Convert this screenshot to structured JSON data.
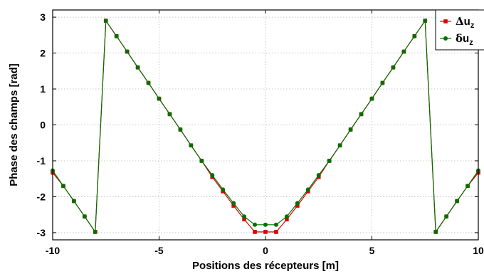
{
  "chart_data": {
    "type": "line",
    "xlabel": "Positions des récepteurs [m]",
    "ylabel": "Phase des champs [rad]",
    "xlim": [
      -10,
      10
    ],
    "ylim": [
      -3.2,
      3.2
    ],
    "xticks": [
      "-10",
      "-5",
      "0",
      "5",
      "10"
    ],
    "yticks": [
      "-3",
      "-2",
      "-1",
      "0",
      "1",
      "2",
      "3"
    ],
    "grid": true,
    "legend_position": "top-right",
    "x": [
      -10,
      -9.5,
      -9,
      -8.5,
      -8,
      -7.5,
      -7,
      -6.5,
      -6,
      -5.5,
      -5,
      -4.5,
      -4,
      -3.5,
      -3,
      -2.5,
      -2,
      -1.5,
      -1,
      -0.5,
      0,
      0.5,
      1,
      1.5,
      2,
      2.5,
      3,
      3.5,
      4,
      4.5,
      5,
      5.5,
      6,
      6.5,
      7,
      7.5,
      8,
      8.5,
      9,
      9.5,
      10
    ],
    "series": [
      {
        "name": "Δu_z",
        "color": "#e00000",
        "marker": "square",
        "values": [
          -1.33,
          -1.7,
          -2.12,
          -2.55,
          -2.98,
          2.9,
          2.47,
          2.04,
          1.6,
          1.17,
          0.73,
          0.3,
          -0.13,
          -0.57,
          -1.0,
          -1.45,
          -1.85,
          -2.25,
          -2.63,
          -2.98,
          -2.98,
          -2.98,
          -2.63,
          -2.25,
          -1.85,
          -1.45,
          -1.0,
          -0.57,
          -0.13,
          0.3,
          0.73,
          1.17,
          1.6,
          2.04,
          2.47,
          2.9,
          -2.98,
          -2.55,
          -2.12,
          -1.7,
          -1.33
        ]
      },
      {
        "name": "δu_z",
        "color": "#007000",
        "marker": "circle",
        "values": [
          -1.27,
          -1.7,
          -2.12,
          -2.55,
          -2.98,
          2.9,
          2.47,
          2.04,
          1.6,
          1.17,
          0.73,
          0.3,
          -0.13,
          -0.57,
          -1.0,
          -1.4,
          -1.8,
          -2.18,
          -2.55,
          -2.78,
          -2.78,
          -2.78,
          -2.55,
          -2.18,
          -1.8,
          -1.4,
          -1.0,
          -0.57,
          -0.13,
          0.3,
          0.73,
          1.17,
          1.6,
          2.04,
          2.47,
          2.9,
          -2.98,
          -2.55,
          -2.12,
          -1.7,
          -1.27
        ]
      }
    ],
    "legend": [
      {
        "symbol": "Δ",
        "text": "u",
        "sub": "z"
      },
      {
        "symbol": "δ",
        "text": "u",
        "sub": "z"
      }
    ]
  }
}
